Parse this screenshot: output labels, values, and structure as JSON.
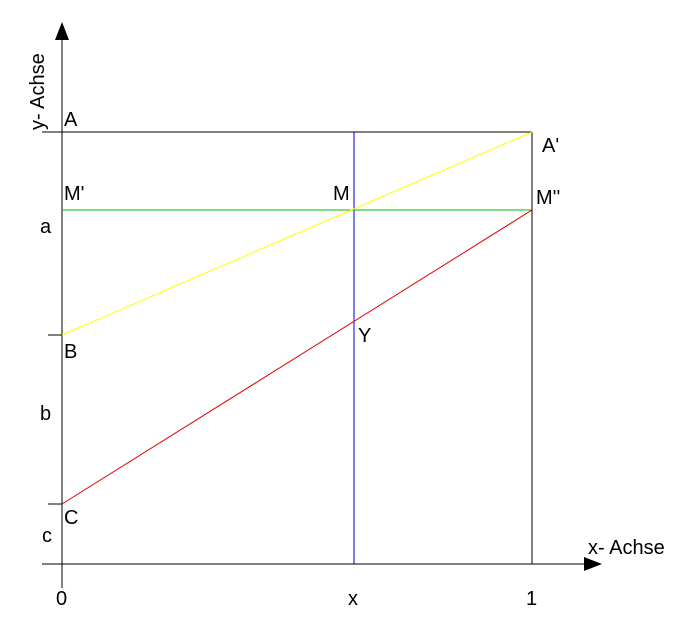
{
  "axes": {
    "x_label": "x- Achse",
    "y_label": "y- Achse"
  },
  "ticks": {
    "x_zero": "0",
    "x_mid": "x",
    "x_one": "1"
  },
  "points": {
    "A": "A",
    "A_prime": "A'",
    "M_prime": "M'",
    "M": "M",
    "M_double_prime": "M''",
    "B": "B",
    "Y": "Y",
    "C": "C"
  },
  "segments": {
    "a": "a",
    "b": "b",
    "c": "c"
  },
  "colors": {
    "axis": "#000000",
    "vertical_x": "#0000cc",
    "green_line": "#00bb00",
    "yellow_line": "#ffff00",
    "red_line": "#dd0000"
  }
}
